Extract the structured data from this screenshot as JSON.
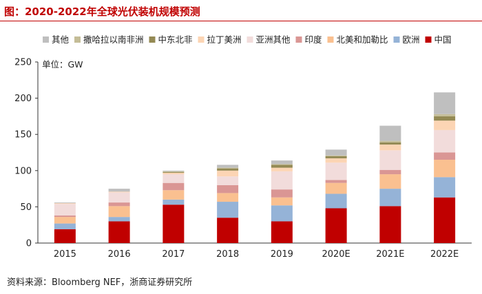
{
  "header": {
    "title": "图：2020-2022年全球光伏装机规模预测"
  },
  "footer": {
    "source": "资料来源：Bloomberg NEF，浙商证券研究所"
  },
  "chart_data": {
    "type": "bar",
    "stacked": true,
    "unit_label": "单位：GW",
    "categories": [
      "2015",
      "2016",
      "2017",
      "2018",
      "2019",
      "2020E",
      "2021E",
      "2022E"
    ],
    "ylim": [
      0,
      250
    ],
    "yticks": [
      0,
      50,
      100,
      150,
      200,
      250
    ],
    "legend_position": "top",
    "legend_order": [
      "其他",
      "撒哈拉以南非洲",
      "中东北非",
      "拉丁美洲",
      "亚洲其他",
      "印度",
      "北美和加勒比",
      "欧洲",
      "中国"
    ],
    "series": [
      {
        "name": "中国",
        "color": "#c00000",
        "values": [
          19,
          30,
          53,
          35,
          30,
          48,
          51,
          63
        ]
      },
      {
        "name": "欧洲",
        "color": "#95b3d7",
        "values": [
          8,
          6,
          7,
          22,
          22,
          20,
          24,
          28
        ]
      },
      {
        "name": "北美和加勒比",
        "color": "#fac090",
        "values": [
          9,
          15,
          13,
          12,
          11,
          15,
          20,
          24
        ]
      },
      {
        "name": "印度",
        "color": "#da9694",
        "values": [
          2,
          5,
          10,
          11,
          11,
          4,
          6,
          10
        ]
      },
      {
        "name": "亚洲其他",
        "color": "#f2dcdb",
        "values": [
          16,
          14,
          12,
          12,
          25,
          24,
          27,
          31
        ]
      },
      {
        "name": "拉丁美洲",
        "color": "#fcd5b4",
        "values": [
          1,
          1,
          2,
          8,
          5,
          6,
          8,
          13
        ]
      },
      {
        "name": "中东北非",
        "color": "#948a54",
        "values": [
          0,
          0,
          1,
          3,
          4,
          3,
          3,
          6
        ]
      },
      {
        "name": "撒哈拉以南非洲",
        "color": "#c4bd97",
        "values": [
          0,
          0,
          1,
          1,
          1,
          1,
          2,
          3
        ]
      },
      {
        "name": "其他",
        "color": "#bfbfbf",
        "values": [
          1,
          4,
          1,
          4,
          5,
          8,
          21,
          30
        ]
      }
    ]
  }
}
